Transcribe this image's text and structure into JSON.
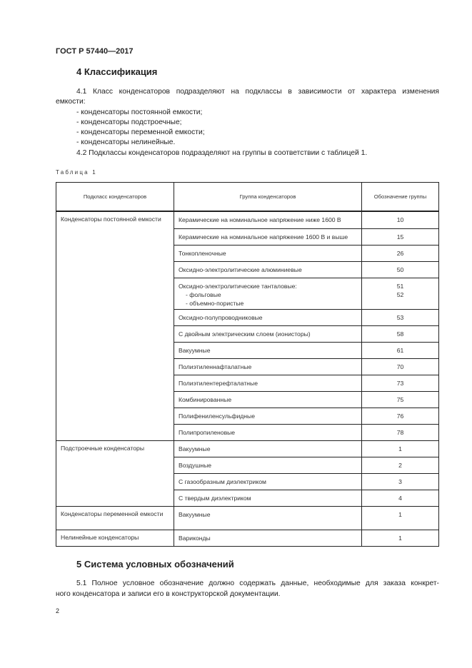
{
  "header": "ГОСТ Р 57440—2017",
  "section4": {
    "title": "4  Классификация",
    "p1_line1": "4.1 Класс конденсаторов подразделяют на подклассы в зависимости от характера изменения",
    "p1_line2": "емкости:",
    "list": [
      "- конденсаторы постоянной емкости;",
      "- конденсаторы подстроечные;",
      "- конденсаторы переменной емкости;",
      "- конденсаторы нелинейные."
    ],
    "p2": "4.2 Подклассы конденсаторов подразделяют на группы в соответствии с таблицей 1."
  },
  "table": {
    "caption": "Таблица 1",
    "headers": [
      "Подкласс конденсаторов",
      "Группа конденсаторов",
      "Обозначение группы"
    ],
    "groups": [
      {
        "subclass": "Конденсаторы постоянной емкости",
        "items": [
          {
            "group": "Керамические на номинальное напряжение ниже 1600 В",
            "code": "10"
          },
          {
            "group": "Керамические на номинальное напряжение 1600 В и выше",
            "code": "15"
          },
          {
            "group": "Тонкопленочные",
            "code": "26"
          },
          {
            "group": "Оксидно-электролитические алюминиевые",
            "code": "50"
          },
          {
            "group": "Оксидно-электролитические танталовые:",
            "code": "",
            "subitems": [
              {
                "group": "- фольговые",
                "code": "51"
              },
              {
                "group": "- объемно-пористые",
                "code": "52"
              }
            ]
          },
          {
            "group": "Оксидно-полупроводниковые",
            "code": "53"
          },
          {
            "group": "С двойным электрическим слоем (ионисторы)",
            "code": "58"
          },
          {
            "group": "Вакуумные",
            "code": "61"
          },
          {
            "group": "Полиэтиленнафталатные",
            "code": "70"
          },
          {
            "group": "Полиэтилентерефталатные",
            "code": "73"
          },
          {
            "group": "Комбинированные",
            "code": "75"
          },
          {
            "group": "Полифениленсульфидные",
            "code": "76"
          },
          {
            "group": "Полипропиленовые",
            "code": "78"
          }
        ]
      },
      {
        "subclass": "Подстроечные конденсаторы",
        "items": [
          {
            "group": "Вакуумные",
            "code": "1"
          },
          {
            "group": "Воздушные",
            "code": "2"
          },
          {
            "group": "С газообразным диэлектриком",
            "code": "3"
          },
          {
            "group": "С твердым диэлектриком",
            "code": "4"
          }
        ]
      },
      {
        "subclass": "Конденсаторы переменной емкости",
        "items": [
          {
            "group": "Вакуумные",
            "code": "1"
          }
        ]
      },
      {
        "subclass": "Нелинейные конденсаторы",
        "items": [
          {
            "group": "Вариконды",
            "code": "1"
          }
        ]
      }
    ]
  },
  "section5": {
    "title": "5  Система условных обозначений",
    "p1_line1": "5.1 Полное условное обозначение должно содержать данные, необходимые для заказа конкрет-",
    "p1_line2": "ного конденсатора и записи его в конструкторской документации."
  },
  "page_number": "2"
}
